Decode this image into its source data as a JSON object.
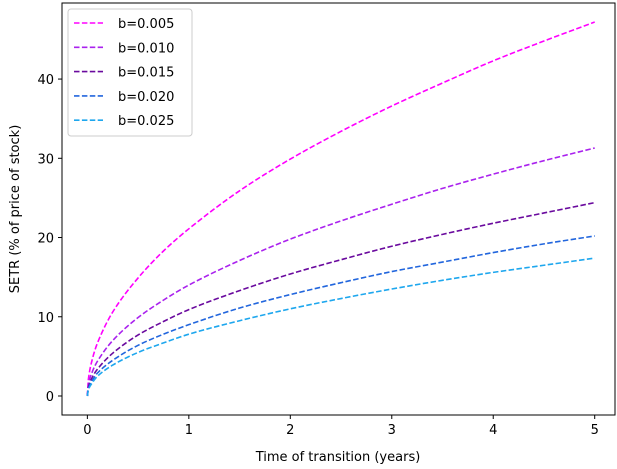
{
  "chart_data": {
    "type": "line",
    "title": "",
    "xlabel": "Time of transition (years)",
    "ylabel": "SETR (% of price of stock)",
    "xlim": [
      -0.25,
      5.2
    ],
    "ylim": [
      -2.4,
      49.6
    ],
    "xticks": [
      0,
      1,
      2,
      3,
      4,
      5
    ],
    "yticks": [
      0,
      10,
      20,
      30,
      40
    ],
    "legend_position": "top-left",
    "grid": false,
    "line_style": "dashed",
    "x": [
      0,
      0.01,
      0.05,
      0.1,
      0.25,
      0.5,
      0.75,
      1,
      1.5,
      2,
      2.5,
      3,
      3.5,
      4,
      4.5,
      5
    ],
    "series": [
      {
        "name": "b=0.005",
        "color": "#ff00ff",
        "values": [
          0,
          2.1,
          4.7,
          6.7,
          10.6,
          14.9,
          18.3,
          21.1,
          25.9,
          29.9,
          33.4,
          36.6,
          39.5,
          42.3,
          44.8,
          47.2
        ]
      },
      {
        "name": "b=0.010",
        "color": "#aa22ee",
        "values": [
          0,
          1.4,
          3.1,
          4.4,
          7.0,
          9.9,
          12.1,
          14.0,
          17.1,
          19.8,
          22.1,
          24.2,
          26.2,
          28.0,
          29.7,
          31.3
        ]
      },
      {
        "name": "b=0.015",
        "color": "#6a0a9e",
        "values": [
          0,
          1.1,
          2.4,
          3.4,
          5.4,
          7.7,
          9.4,
          10.9,
          13.3,
          15.4,
          17.2,
          18.9,
          20.4,
          21.8,
          23.1,
          24.4
        ]
      },
      {
        "name": "b=0.020",
        "color": "#2266dd",
        "values": [
          0,
          0.9,
          2.0,
          2.9,
          4.5,
          6.4,
          7.8,
          9.0,
          11.1,
          12.8,
          14.3,
          15.7,
          16.9,
          18.1,
          19.2,
          20.2
        ]
      },
      {
        "name": "b=0.025",
        "color": "#1ea7ee",
        "values": [
          0,
          0.8,
          1.7,
          2.5,
          3.9,
          5.5,
          6.7,
          7.8,
          9.5,
          11.0,
          12.3,
          13.5,
          14.6,
          15.6,
          16.5,
          17.4
        ]
      }
    ]
  }
}
